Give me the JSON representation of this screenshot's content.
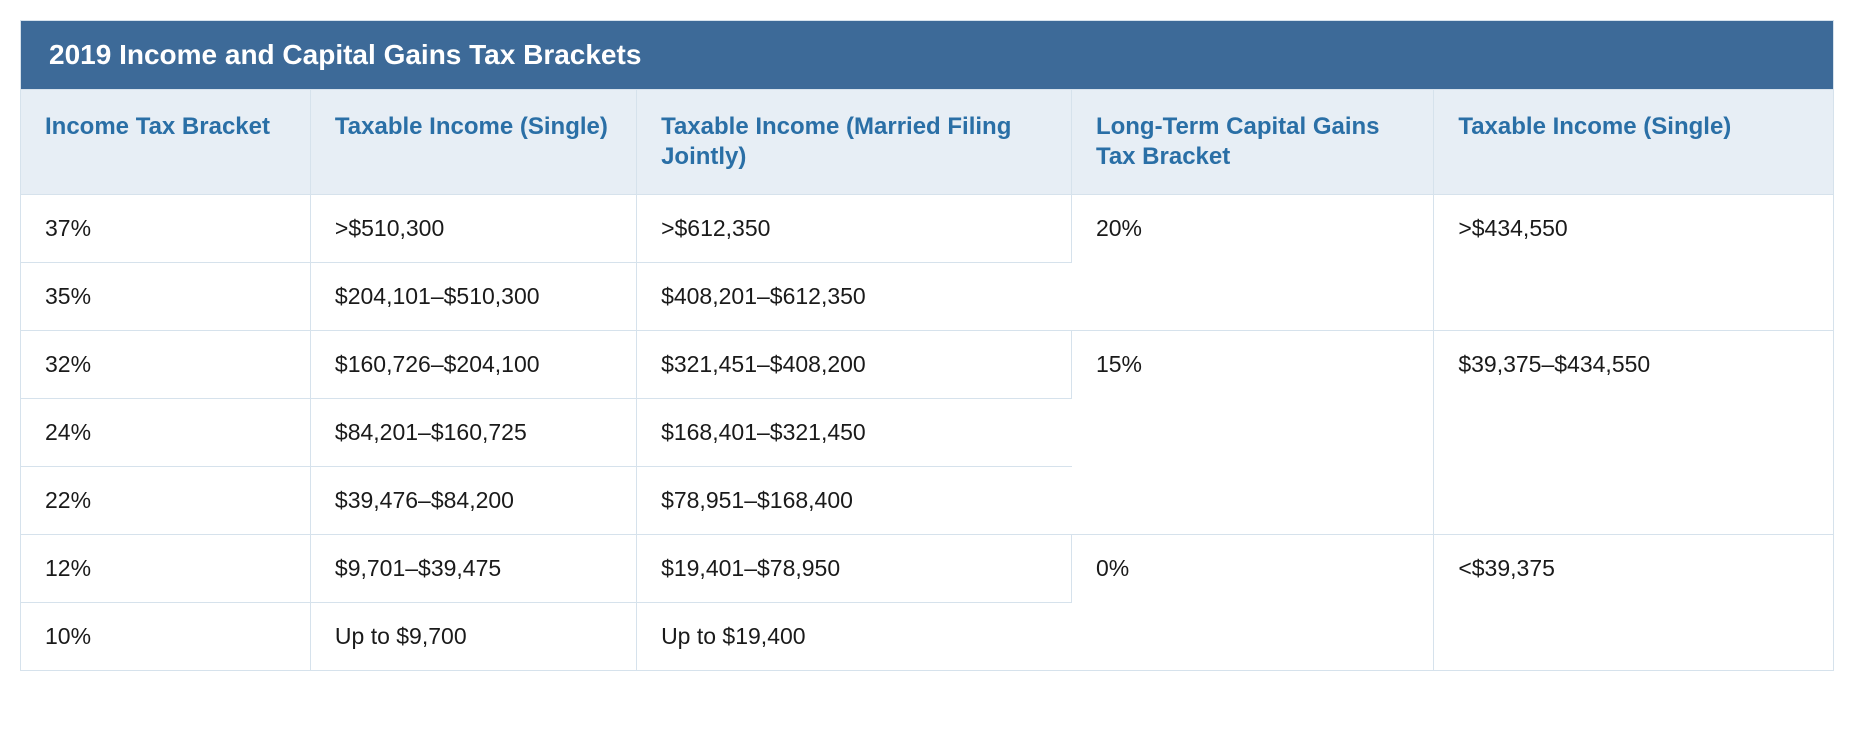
{
  "table": {
    "title": "2019 Income and Capital Gains Tax Brackets",
    "title_bg": "#3d6a98",
    "title_color": "#ffffff",
    "header_bg": "#e7eef5",
    "header_color": "#2a6fa6",
    "border_color": "#d6e2ec",
    "body_text_color": "#1a1a1a",
    "columns": [
      "Income Tax Bracket",
      "Taxable Income (Single)",
      "Taxable Income (Married Filing Jointly)",
      "Long-Term Capital Gains Tax Bracket",
      "Taxable Income (Single)"
    ],
    "rows": [
      {
        "bracket": "37%",
        "single": ">$510,300",
        "married": ">$612,350"
      },
      {
        "bracket": "35%",
        "single": "$204,101–$510,300",
        "married": "$408,201–$612,350"
      },
      {
        "bracket": "32%",
        "single": "$160,726–$204,100",
        "married": "$321,451–$408,200"
      },
      {
        "bracket": "24%",
        "single": "$84,201–$160,725",
        "married": "$168,401–$321,450"
      },
      {
        "bracket": "22%",
        "single": "$39,476–$84,200",
        "married": "$78,951–$168,400"
      },
      {
        "bracket": "12%",
        "single": "$9,701–$39,475",
        "married": "$19,401–$78,950"
      },
      {
        "bracket": "10%",
        "single": "Up to $9,700",
        "married": "Up to $19,400"
      }
    ],
    "ltcg": [
      {
        "rate": "20%",
        "single": ">$434,550",
        "rowspan": 2
      },
      {
        "rate": "15%",
        "single": "$39,375–$434,550",
        "rowspan": 3
      },
      {
        "rate": "0%",
        "single": "<$39,375",
        "rowspan": 2
      }
    ]
  }
}
